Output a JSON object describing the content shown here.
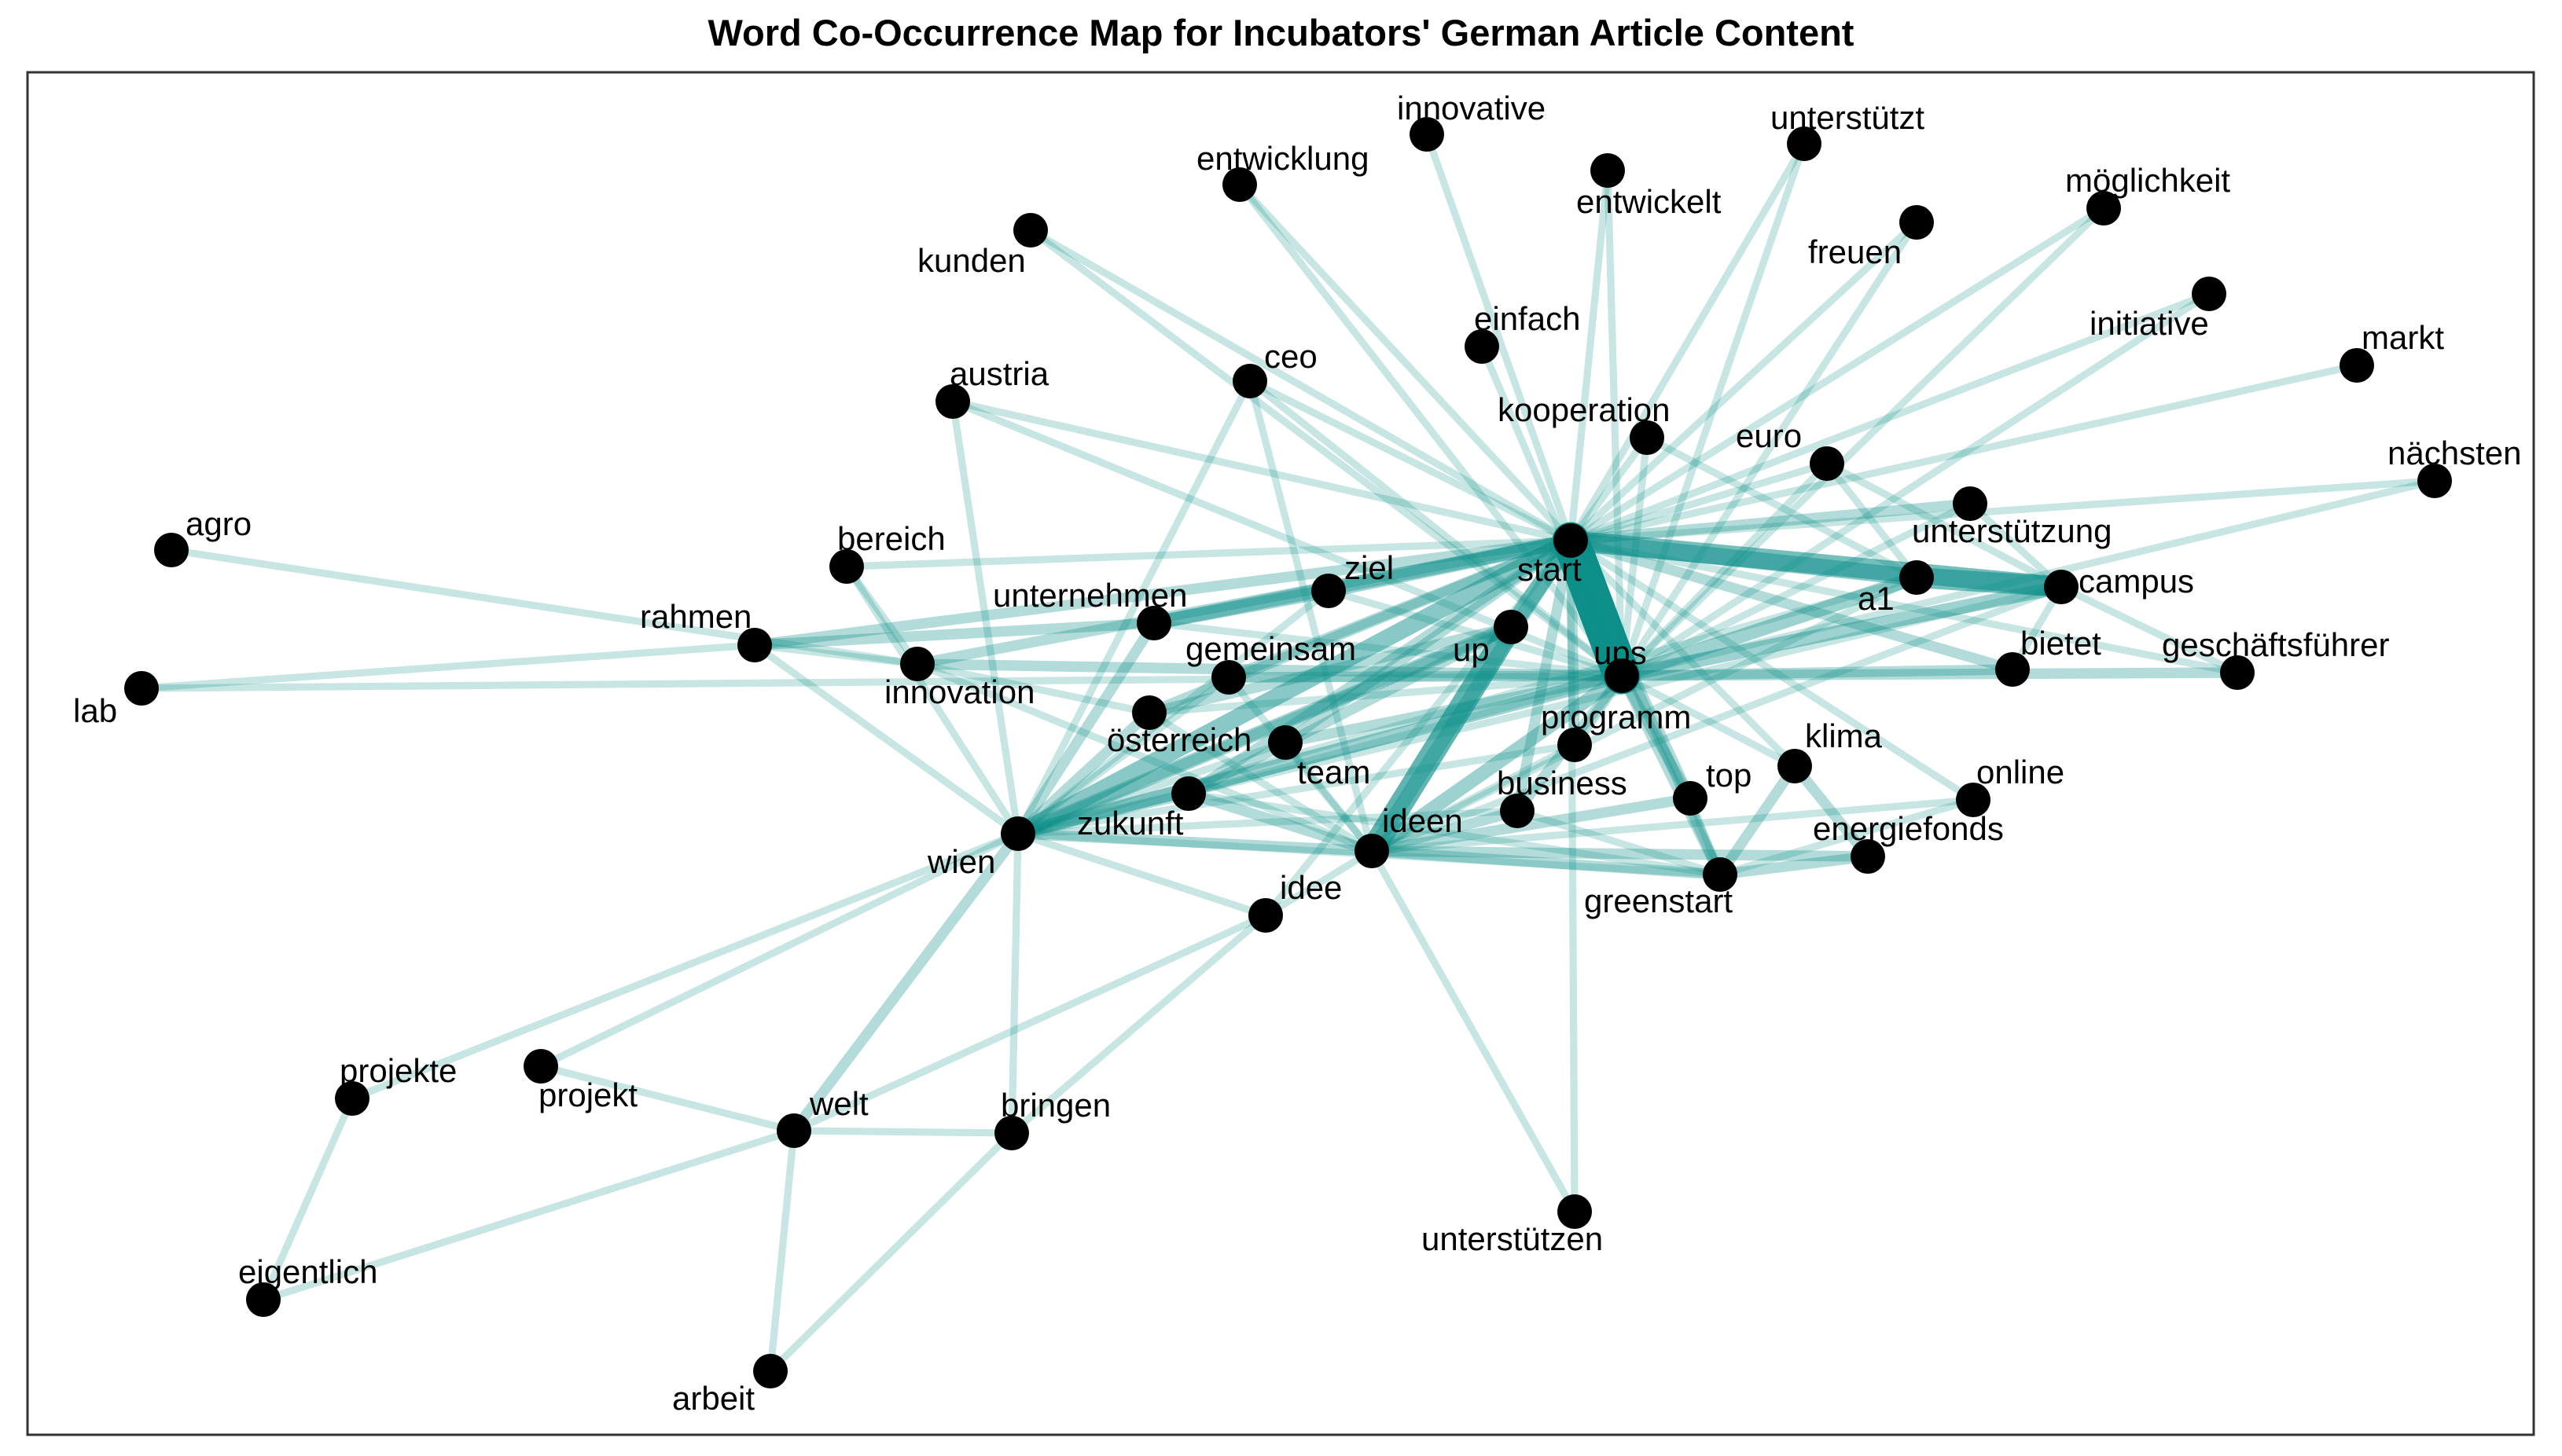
{
  "title": "Word Co-Occurrence Map for Incubators' German Article Content",
  "colors": {
    "edge": "#0e8f8a",
    "node": "#000000",
    "frame": "#333333"
  },
  "nodes": [
    {
      "id": "start",
      "label": "start"
    },
    {
      "id": "ups",
      "label": "ups"
    },
    {
      "id": "up",
      "label": "up"
    },
    {
      "id": "programm",
      "label": "programm"
    },
    {
      "id": "innovative",
      "label": "innovative"
    },
    {
      "id": "entwicklung",
      "label": "entwicklung"
    },
    {
      "id": "unterstützt",
      "label": "unterstützt"
    },
    {
      "id": "entwickelt",
      "label": "entwickelt"
    },
    {
      "id": "kunden",
      "label": "kunden"
    },
    {
      "id": "freuen",
      "label": "freuen"
    },
    {
      "id": "möglichkeit",
      "label": "möglichkeit"
    },
    {
      "id": "initiative",
      "label": "initiative"
    },
    {
      "id": "einfach",
      "label": "einfach"
    },
    {
      "id": "ceo",
      "label": "ceo"
    },
    {
      "id": "austria",
      "label": "austria"
    },
    {
      "id": "markt",
      "label": "markt"
    },
    {
      "id": "kooperation",
      "label": "kooperation"
    },
    {
      "id": "euro",
      "label": "euro"
    },
    {
      "id": "nächsten",
      "label": "nächsten"
    },
    {
      "id": "agro",
      "label": "agro"
    },
    {
      "id": "bereich",
      "label": "bereich"
    },
    {
      "id": "unterstützung",
      "label": "unterstützung"
    },
    {
      "id": "ziel",
      "label": "ziel"
    },
    {
      "id": "a1",
      "label": "a1"
    },
    {
      "id": "campus",
      "label": "campus"
    },
    {
      "id": "unternehmen",
      "label": "unternehmen"
    },
    {
      "id": "rahmen",
      "label": "rahmen"
    },
    {
      "id": "bietet",
      "label": "bietet"
    },
    {
      "id": "geschäftsführer",
      "label": "geschäftsführer"
    },
    {
      "id": "gemeinsam",
      "label": "gemeinsam"
    },
    {
      "id": "lab",
      "label": "lab"
    },
    {
      "id": "innovation",
      "label": "innovation"
    },
    {
      "id": "österreich",
      "label": "österreich"
    },
    {
      "id": "klima",
      "label": "klima"
    },
    {
      "id": "team",
      "label": "team"
    },
    {
      "id": "online",
      "label": "online"
    },
    {
      "id": "business",
      "label": "business"
    },
    {
      "id": "top",
      "label": "top"
    },
    {
      "id": "zukunft",
      "label": "zukunft"
    },
    {
      "id": "ideen",
      "label": "ideen"
    },
    {
      "id": "energiefonds",
      "label": "energiefonds"
    },
    {
      "id": "wien",
      "label": "wien"
    },
    {
      "id": "greenstart",
      "label": "greenstart"
    },
    {
      "id": "idee",
      "label": "idee"
    },
    {
      "id": "projekte",
      "label": "projekte"
    },
    {
      "id": "projekt",
      "label": "projekt"
    },
    {
      "id": "welt",
      "label": "welt"
    },
    {
      "id": "bringen",
      "label": "bringen"
    },
    {
      "id": "unterstützen",
      "label": "unterstützen"
    },
    {
      "id": "eigentlich",
      "label": "eigentlich"
    },
    {
      "id": "arbeit",
      "label": "arbeit"
    }
  ],
  "edges": [
    [
      "start",
      "ups",
      10
    ],
    [
      "start",
      "up",
      4
    ],
    [
      "up",
      "ideen",
      6
    ],
    [
      "start",
      "campus",
      5
    ],
    [
      "start",
      "a1",
      4
    ],
    [
      "a1",
      "campus",
      5
    ],
    [
      "wien",
      "start",
      4
    ],
    [
      "wien",
      "up",
      3
    ],
    [
      "wien",
      "ups",
      3
    ],
    [
      "ups",
      "campus",
      3
    ],
    [
      "ups",
      "a1",
      3
    ],
    [
      "unternehmen",
      "start",
      3
    ],
    [
      "unternehmen",
      "ziel",
      3
    ],
    [
      "ziel",
      "start",
      3
    ],
    [
      "ideen",
      "start",
      3
    ],
    [
      "ideen",
      "ups",
      3
    ],
    [
      "wien",
      "zukunft",
      2
    ],
    [
      "wien",
      "österreich",
      2
    ],
    [
      "start",
      "programm",
      2
    ],
    [
      "ups",
      "programm",
      2
    ],
    [
      "start",
      "greenstart",
      2
    ],
    [
      "ups",
      "greenstart",
      2
    ],
    [
      "klima",
      "greenstart",
      2
    ],
    [
      "klima",
      "energiefonds",
      2
    ],
    [
      "energiefonds",
      "greenstart",
      2
    ],
    [
      "start",
      "top",
      2
    ],
    [
      "ups",
      "top",
      2
    ],
    [
      "unternehmen",
      "wien",
      2
    ],
    [
      "ideen",
      "greenstart",
      2
    ],
    [
      "ideen",
      "zukunft",
      2
    ],
    [
      "ideen",
      "wien",
      2
    ],
    [
      "start",
      "unterstützung",
      2
    ],
    [
      "start",
      "bietet",
      2
    ],
    [
      "ups",
      "bietet",
      2
    ],
    [
      "start",
      "rahmen",
      2
    ],
    [
      "rahmen",
      "unternehmen",
      2
    ],
    [
      "start",
      "österreich",
      2
    ],
    [
      "start",
      "zukunft",
      2
    ],
    [
      "start",
      "business",
      2
    ],
    [
      "ups",
      "business",
      2
    ],
    [
      "start",
      "team",
      2
    ],
    [
      "ups",
      "team",
      2
    ],
    [
      "up",
      "wien",
      2
    ],
    [
      "up",
      "zukunft",
      2
    ],
    [
      "up",
      "österreich",
      2
    ],
    [
      "start",
      "gemeinsam",
      2
    ],
    [
      "ups",
      "gemeinsam",
      2
    ],
    [
      "innovation",
      "start",
      2
    ],
    [
      "innovation",
      "ups",
      2
    ],
    [
      "wien",
      "welt",
      2
    ],
    [
      "ups",
      "geschäftsführer",
      2
    ],
    [
      "ideen",
      "energiefonds",
      2
    ],
    [
      "ideen",
      "top",
      2
    ],
    [
      "ideen",
      "business",
      2
    ],
    [
      "innovative",
      "start",
      1
    ],
    [
      "entwicklung",
      "start",
      1
    ],
    [
      "entwicklung",
      "ups",
      1
    ],
    [
      "unterstützt",
      "start",
      1
    ],
    [
      "unterstützt",
      "ups",
      1
    ],
    [
      "entwickelt",
      "start",
      1
    ],
    [
      "entwickelt",
      "ups",
      1
    ],
    [
      "kunden",
      "start",
      1
    ],
    [
      "kunden",
      "ups",
      1
    ],
    [
      "freuen",
      "start",
      1
    ],
    [
      "freuen",
      "ups",
      1
    ],
    [
      "möglichkeit",
      "start",
      1
    ],
    [
      "möglichkeit",
      "ups",
      1
    ],
    [
      "initiative",
      "start",
      1
    ],
    [
      "initiative",
      "ups",
      1
    ],
    [
      "einfach",
      "ups",
      1
    ],
    [
      "ceo",
      "start",
      1
    ],
    [
      "ceo",
      "ups",
      1
    ],
    [
      "austria",
      "start",
      1
    ],
    [
      "austria",
      "ups",
      1
    ],
    [
      "markt",
      "start",
      1
    ],
    [
      "kooperation",
      "start",
      1
    ],
    [
      "kooperation",
      "ups",
      1
    ],
    [
      "euro",
      "start",
      1
    ],
    [
      "euro",
      "ups",
      1
    ],
    [
      "nächsten",
      "start",
      1
    ],
    [
      "nächsten",
      "ups",
      1
    ],
    [
      "agro",
      "innovation",
      1
    ],
    [
      "lab",
      "rahmen",
      1
    ],
    [
      "lab",
      "ups",
      1
    ],
    [
      "bereich",
      "start",
      1
    ],
    [
      "bereich",
      "wien",
      1
    ],
    [
      "bereich",
      "innovation",
      1
    ],
    [
      "rahmen",
      "wien",
      1
    ],
    [
      "rahmen",
      "innovation",
      1
    ],
    [
      "unterstützung",
      "ups",
      1
    ],
    [
      "unterstützung",
      "campus",
      1
    ],
    [
      "geschäftsführer",
      "start",
      1
    ],
    [
      "geschäftsführer",
      "campus",
      1
    ],
    [
      "gemeinsam",
      "wien",
      1
    ],
    [
      "gemeinsam",
      "ideen",
      1
    ],
    [
      "innovation",
      "österreich",
      1
    ],
    [
      "innovation",
      "ideen",
      1
    ],
    [
      "österreich",
      "ideen",
      1
    ],
    [
      "klima",
      "start",
      1
    ],
    [
      "klima",
      "ups",
      1
    ],
    [
      "online",
      "start",
      1
    ],
    [
      "online",
      "ideen",
      1
    ],
    [
      "online",
      "greenstart",
      1
    ],
    [
      "team",
      "wien",
      1
    ],
    [
      "team",
      "ideen",
      1
    ],
    [
      "business",
      "wien",
      1
    ],
    [
      "business",
      "greenstart",
      1
    ],
    [
      "top",
      "greenstart",
      1
    ],
    [
      "zukunft",
      "ups",
      1
    ],
    [
      "programm",
      "ideen",
      1
    ],
    [
      "programm",
      "wien",
      1
    ],
    [
      "greenstart",
      "wien",
      1
    ],
    [
      "greenstart",
      "zukunft",
      1
    ],
    [
      "idee",
      "start",
      1
    ],
    [
      "idee",
      "ideen",
      1
    ],
    [
      "idee",
      "welt",
      1
    ],
    [
      "idee",
      "bringen",
      1
    ],
    [
      "projekte",
      "wien",
      1
    ],
    [
      "projekte",
      "eigentlich",
      1
    ],
    [
      "projekt",
      "wien",
      1
    ],
    [
      "projekt",
      "welt",
      1
    ],
    [
      "welt",
      "bringen",
      1
    ],
    [
      "welt",
      "arbeit",
      1
    ],
    [
      "welt",
      "eigentlich",
      1
    ],
    [
      "bringen",
      "wien",
      1
    ],
    [
      "bringen",
      "arbeit",
      1
    ],
    [
      "unterstützen",
      "ideen",
      1
    ],
    [
      "unterstützen",
      "start",
      1
    ],
    [
      "ceo",
      "wien",
      1
    ],
    [
      "ceo",
      "ideen",
      1
    ],
    [
      "austria",
      "wien",
      1
    ],
    [
      "euro",
      "a1",
      1
    ],
    [
      "euro",
      "campus",
      1
    ],
    [
      "a1",
      "ideen",
      1
    ],
    [
      "campus",
      "ideen",
      1
    ],
    [
      "ziel",
      "wien",
      1
    ],
    [
      "ziel",
      "ups",
      1
    ],
    [
      "unternehmen",
      "ups",
      1
    ],
    [
      "kooperation",
      "a1",
      1
    ],
    [
      "bietet",
      "campus",
      1
    ],
    [
      "österreich",
      "ups",
      1
    ],
    [
      "idee",
      "wien",
      1
    ],
    [
      "wien",
      "campus",
      1
    ],
    [
      "wien",
      "a1",
      1
    ]
  ]
}
